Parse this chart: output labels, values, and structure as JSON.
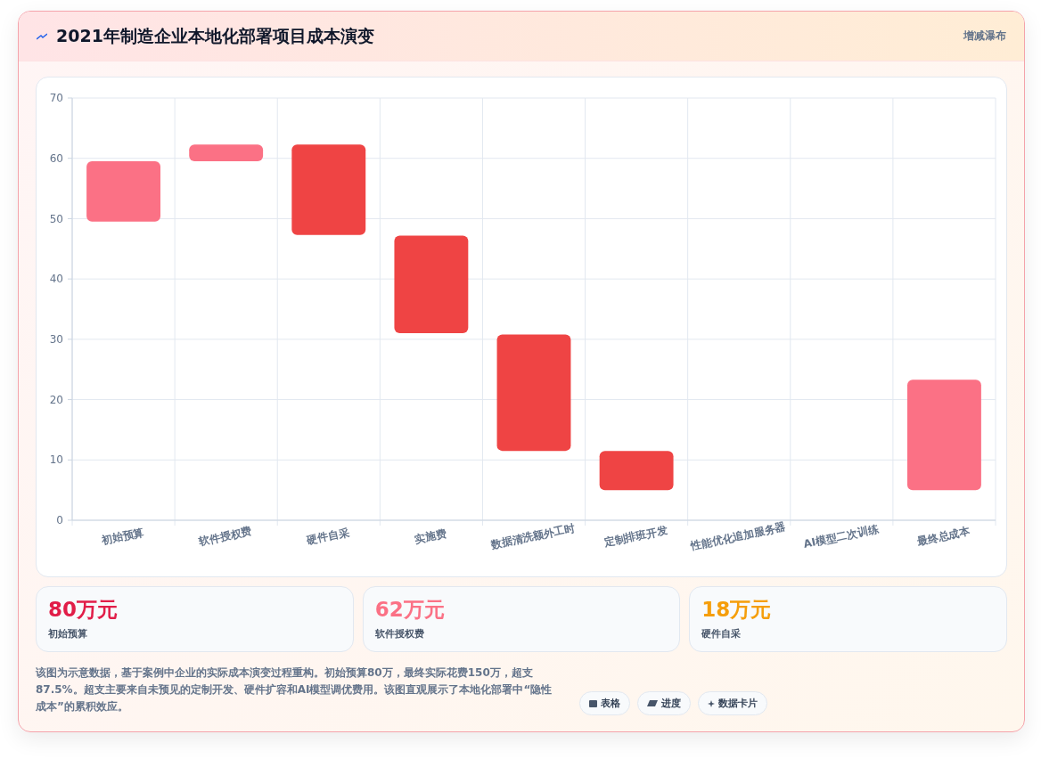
{
  "chart_data": {
    "type": "bar",
    "title": "2021年制造企业本地化部署项目成本演变",
    "categories": [
      "初始预算",
      "软件授权费",
      "硬件自采",
      "实施费",
      "数据清洗额外工时",
      "定制排班开发",
      "性能优化追加服务器",
      "AI模型二次训练",
      "最终总成本"
    ],
    "base": [
      49.5,
      59.5,
      47.3,
      31,
      11.5,
      5,
      null,
      null,
      5
    ],
    "values": [
      10,
      2.8,
      15,
      16.2,
      19.3,
      6.5,
      null,
      null,
      18.3
    ],
    "colors": [
      "#fb7185",
      "#fb7185",
      "#ef4444",
      "#ef4444",
      "#ef4444",
      "#ef4444",
      null,
      null,
      "#fb7185"
    ],
    "ylim": [
      0,
      70
    ],
    "yticks": [
      0,
      10,
      20,
      30,
      40,
      50,
      60,
      70
    ],
    "grid": true,
    "annotations": [
      "增减瀑布",
      "80万元",
      "初始预算",
      "62万元",
      "软件授权费",
      "18万元",
      "硬件自采",
      "该图为示意数据，基于案例中企业的实际成本演变过程重构。初始预算80万，最终实际花费150万，超支87.5%。超支主要来自未预见的定制开发、硬件扩容和AI模型调优费用。该图直观展示了本地化部署中“隐性成本”的累积效应。",
      "表格",
      "进度",
      "数据卡片"
    ]
  }
}
